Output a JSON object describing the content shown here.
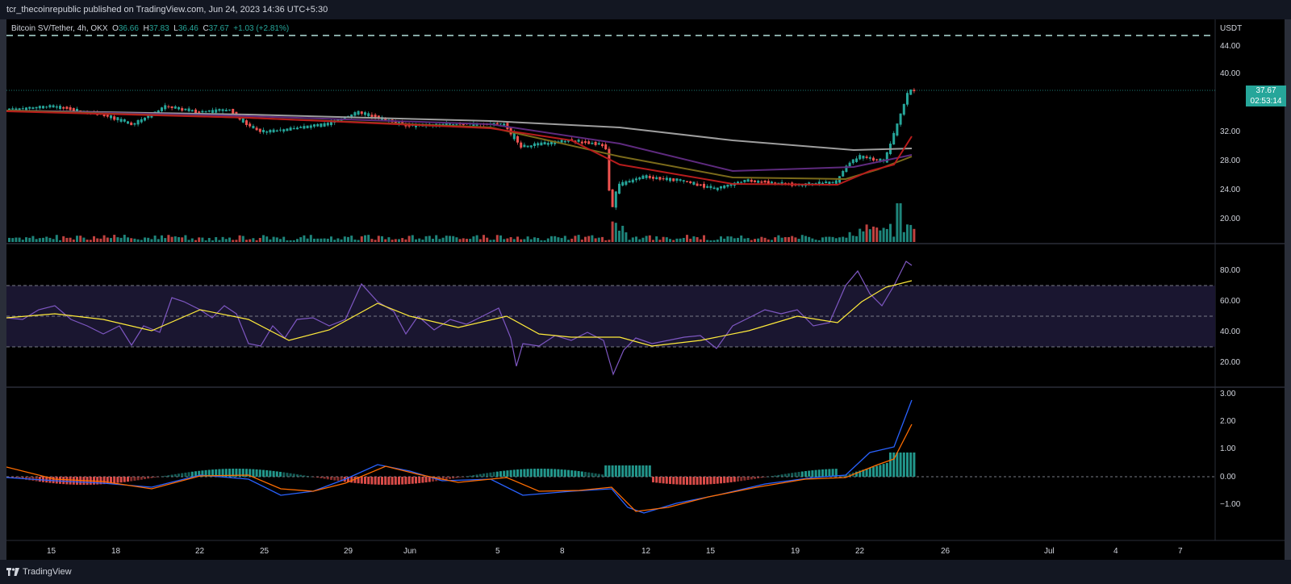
{
  "header": {
    "published": "tcr_thecoinrepublic published on TradingView.com, Jun 24, 2023 14:36 UTC+5:30"
  },
  "legend": {
    "symbol": "Bitcoin SV/Tether, 4h, OKX",
    "o_label": "O",
    "o": "36.66",
    "h_label": "H",
    "h": "37.83",
    "l_label": "L",
    "l": "36.46",
    "c_label": "C",
    "c": "37.67",
    "change": "+1.03 (+2.81%)"
  },
  "price_axis": {
    "currency": "USDT",
    "ticks": [
      "44.00",
      "40.00",
      "32.00",
      "28.00",
      "24.00",
      "20.00"
    ],
    "last_price": "37.67",
    "countdown": "02:53:14"
  },
  "rsi_axis": {
    "ticks": [
      "80.00",
      "60.00",
      "40.00",
      "20.00"
    ]
  },
  "macd_axis": {
    "ticks": [
      "3.00",
      "2.00",
      "1.00",
      "0.00",
      "−1.00"
    ]
  },
  "time_axis": {
    "ticks": [
      "15",
      "18",
      "22",
      "25",
      "29",
      "Jun",
      "5",
      "8",
      "12",
      "15",
      "19",
      "22",
      "26",
      "Jul",
      "4",
      "7"
    ]
  },
  "footer": {
    "brand": "TradingView"
  },
  "colors": {
    "up": "#26a69a",
    "down": "#ef5350",
    "rsi": "#7e57c2",
    "rsi_ma": "#ffeb3b",
    "macd": "#2962ff",
    "signal": "#ff6d00"
  },
  "chart_data": {
    "type": "line",
    "title": "Bitcoin SV/Tether, 4h, OKX",
    "price_close": [
      {
        "date": "May 15",
        "value": 35.6
      },
      {
        "date": "May 18",
        "value": 34.6
      },
      {
        "date": "May 20",
        "value": 33.6
      },
      {
        "date": "May 22",
        "value": 35.4
      },
      {
        "date": "May 25",
        "value": 33.2
      },
      {
        "date": "May 27",
        "value": 33.8
      },
      {
        "date": "May 29",
        "value": 35.4
      },
      {
        "date": "Jun 1",
        "value": 33.6
      },
      {
        "date": "Jun 3",
        "value": 33.8
      },
      {
        "date": "Jun 5",
        "value": 33.4
      },
      {
        "date": "Jun 6",
        "value": 30.4
      },
      {
        "date": "Jun 8",
        "value": 30.2
      },
      {
        "date": "Jun 9",
        "value": 30.0
      },
      {
        "date": "Jun 10",
        "value": 23.5
      },
      {
        "date": "Jun 11",
        "value": 26.4
      },
      {
        "date": "Jun 13",
        "value": 25.8
      },
      {
        "date": "Jun 15",
        "value": 24.6
      },
      {
        "date": "Jun 17",
        "value": 25.4
      },
      {
        "date": "Jun 19",
        "value": 24.8
      },
      {
        "date": "Jun 21",
        "value": 25.0
      },
      {
        "date": "Jun 22",
        "value": 28.0
      },
      {
        "date": "Jun 23",
        "value": 28.6
      },
      {
        "date": "Jun 23.5",
        "value": 33.4
      },
      {
        "date": "Jun 24",
        "value": 37.67
      }
    ],
    "moving_averages": [
      {
        "name": "MA gray",
        "values": [
          35.6,
          35.2,
          34.9,
          34.5,
          33.2,
          31.5,
          29.5,
          29.6
        ]
      },
      {
        "name": "MA purple",
        "values": [
          35.6,
          35.0,
          34.6,
          33.6,
          30.5,
          27.6,
          27.3,
          28.7
        ]
      },
      {
        "name": "MA olive",
        "values": [
          35.6,
          34.9,
          34.5,
          33.2,
          28.5,
          25.8,
          26.5,
          28.4
        ]
      },
      {
        "name": "MA red",
        "values": [
          35.6,
          34.8,
          34.3,
          33.0,
          29.8,
          25.3,
          27.8,
          31.5
        ]
      }
    ],
    "rsi": {
      "upper_band": 70,
      "mid_band": 50,
      "lower_band": 30,
      "values": [
        {
          "date": "May 15",
          "value": 52
        },
        {
          "date": "May 20",
          "value": 40
        },
        {
          "date": "May 22",
          "value": 65
        },
        {
          "date": "May 25",
          "value": 32
        },
        {
          "date": "May 29",
          "value": 73
        },
        {
          "date": "Jun 5",
          "value": 52
        },
        {
          "date": "Jun 6",
          "value": 18
        },
        {
          "date": "Jun 10",
          "value": 14
        },
        {
          "date": "Jun 12",
          "value": 30
        },
        {
          "date": "Jun 17",
          "value": 63
        },
        {
          "date": "Jun 21",
          "value": 82
        },
        {
          "date": "Jun 22",
          "value": 60
        },
        {
          "date": "Jun 24",
          "value": 86
        }
      ],
      "ylim": [
        10,
        95
      ]
    },
    "macd": {
      "values": [
        {
          "date": "May 15",
          "value": -0.1
        },
        {
          "date": "May 25",
          "value": -0.6
        },
        {
          "date": "May 29",
          "value": 0.4
        },
        {
          "date": "Jun 5",
          "value": -0.1
        },
        {
          "date": "Jun 11",
          "value": -1.4
        },
        {
          "date": "Jun 19",
          "value": 0.0
        },
        {
          "date": "Jun 22",
          "value": 0.9
        },
        {
          "date": "Jun 24",
          "value": 2.7
        }
      ],
      "ylim": [
        -1.5,
        3.0
      ]
    }
  }
}
